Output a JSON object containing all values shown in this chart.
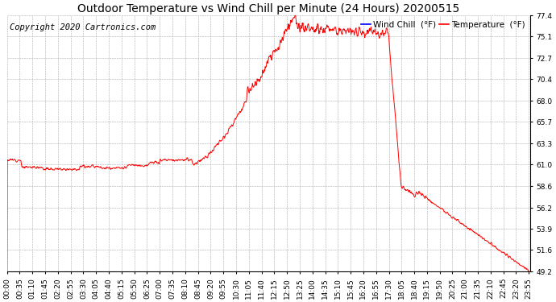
{
  "title": "Outdoor Temperature vs Wind Chill per Minute (24 Hours) 20200515",
  "copyright_text": "Copyright 2020 Cartronics.com",
  "legend_wind_chill": "Wind Chill  (°F)",
  "legend_temperature": "Temperature  (°F)",
  "wind_chill_color": "#0000ff",
  "temperature_color": "#ff0000",
  "line_color": "#ff0000",
  "background_color": "#ffffff",
  "grid_color": "#aaaaaa",
  "ylim": [
    49.2,
    77.4
  ],
  "yticks": [
    49.2,
    51.6,
    53.9,
    56.2,
    58.6,
    61.0,
    63.3,
    65.7,
    68.0,
    70.4,
    72.7,
    75.1,
    77.4
  ],
  "title_fontsize": 10,
  "tick_fontsize": 6.5,
  "copyright_fontsize": 7.5
}
